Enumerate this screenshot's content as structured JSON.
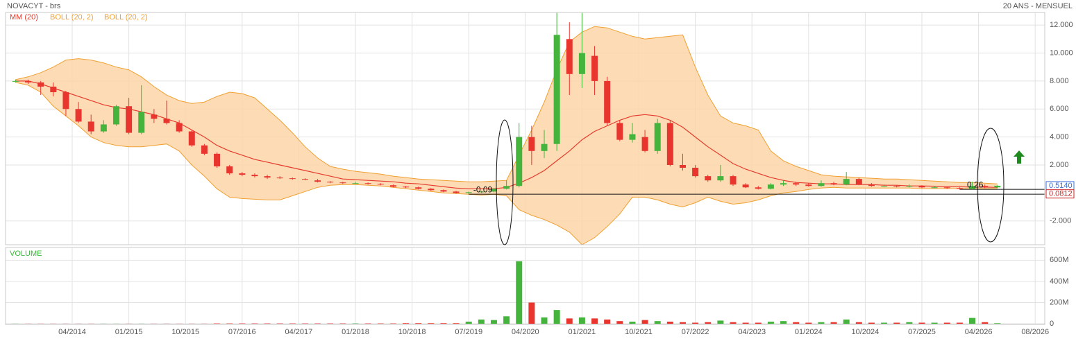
{
  "chart_data": {
    "type": "candlestick",
    "title": "NOVACYT - brs",
    "subtitle": "20 ANS - MENSUEL",
    "x": [
      "07/2013",
      "09/2013",
      "11/2013",
      "01/2014",
      "03/2014",
      "05/2014",
      "07/2014",
      "09/2014",
      "11/2014",
      "01/2015",
      "03/2015",
      "05/2015",
      "07/2015",
      "09/2015",
      "11/2015",
      "01/2016",
      "03/2016",
      "05/2016",
      "07/2016",
      "09/2016",
      "11/2016",
      "01/2017",
      "03/2017",
      "05/2017",
      "07/2017",
      "09/2017",
      "11/2017",
      "01/2018",
      "03/2018",
      "05/2018",
      "07/2018",
      "09/2018",
      "11/2018",
      "01/2019",
      "03/2019",
      "05/2019",
      "07/2019",
      "09/2019",
      "11/2019",
      "01/2020",
      "03/2020",
      "05/2020",
      "07/2020",
      "09/2020",
      "11/2020",
      "01/2021",
      "03/2021",
      "05/2021",
      "07/2021",
      "09/2021",
      "11/2021",
      "01/2022",
      "03/2022",
      "05/2022",
      "07/2022",
      "09/2022",
      "11/2022",
      "01/2023",
      "03/2023",
      "05/2023",
      "07/2023",
      "09/2023",
      "11/2023",
      "01/2024",
      "03/2024",
      "05/2024",
      "07/2024",
      "09/2024",
      "11/2024",
      "01/2025",
      "03/2025",
      "05/2025",
      "07/2025",
      "09/2025",
      "11/2025",
      "01/2026",
      "03/2026",
      "05/2026",
      "07/2026"
    ],
    "open": [
      8.0,
      8.0,
      7.9,
      7.6,
      7.2,
      6.0,
      5.1,
      4.4,
      4.9,
      6.2,
      4.3,
      5.6,
      5.3,
      5.0,
      4.4,
      3.4,
      2.8,
      1.9,
      1.4,
      1.3,
      1.2,
      1.1,
      1.05,
      1.0,
      0.9,
      0.8,
      0.75,
      0.7,
      0.7,
      0.65,
      0.55,
      0.45,
      0.4,
      0.3,
      0.2,
      0.1,
      0.0,
      0.05,
      0.1,
      0.3,
      0.5,
      4.0,
      3.0,
      3.5,
      11.0,
      8.5,
      9.8,
      8.0,
      5.0,
      3.8,
      4.0,
      3.0,
      5.0,
      2.0,
      1.8,
      1.2,
      0.9,
      1.2,
      0.6,
      0.4,
      0.3,
      0.6,
      0.7,
      0.6,
      0.5,
      0.7,
      0.6,
      1.0,
      0.6,
      0.5,
      0.5,
      0.45,
      0.5,
      0.4,
      0.4,
      0.35,
      0.3,
      0.5,
      0.4
    ],
    "high": [
      8.1,
      8.1,
      8.0,
      7.9,
      7.3,
      6.5,
      5.6,
      5.2,
      6.3,
      6.8,
      7.7,
      6.0,
      6.6,
      5.2,
      4.5,
      3.5,
      2.9,
      2.0,
      1.5,
      1.4,
      1.3,
      1.2,
      1.1,
      1.05,
      1.0,
      0.85,
      0.8,
      0.8,
      0.75,
      0.7,
      0.6,
      0.5,
      0.45,
      0.35,
      0.25,
      0.15,
      0.1,
      0.15,
      0.35,
      0.9,
      5.0,
      4.8,
      4.5,
      12.9,
      12.2,
      12.9,
      10.5,
      8.3,
      5.2,
      5.0,
      4.5,
      5.3,
      5.2,
      2.8,
      2.0,
      1.3,
      2.0,
      1.3,
      0.7,
      0.5,
      0.7,
      0.9,
      0.8,
      0.7,
      0.9,
      0.8,
      1.5,
      1.1,
      0.7,
      0.6,
      0.55,
      0.6,
      0.55,
      0.5,
      0.45,
      0.4,
      0.8,
      0.6,
      0.55
    ],
    "low": [
      7.9,
      7.8,
      7.0,
      6.9,
      5.5,
      5.0,
      4.2,
      4.3,
      4.8,
      4.2,
      4.2,
      5.0,
      4.9,
      4.3,
      3.3,
      2.7,
      1.8,
      1.3,
      1.2,
      1.1,
      1.0,
      1.0,
      0.95,
      0.9,
      0.75,
      0.7,
      0.65,
      0.65,
      0.6,
      0.55,
      0.4,
      0.35,
      0.25,
      0.15,
      0.05,
      -0.05,
      -0.09,
      0.0,
      0.05,
      0.25,
      0.4,
      2.0,
      2.5,
      3.0,
      7.0,
      7.5,
      7.0,
      4.8,
      3.7,
      3.6,
      2.9,
      2.8,
      1.9,
      1.6,
      1.1,
      0.8,
      0.8,
      0.5,
      0.35,
      0.25,
      0.25,
      0.5,
      0.5,
      0.45,
      0.45,
      0.55,
      0.55,
      0.55,
      0.45,
      0.45,
      0.4,
      0.4,
      0.35,
      0.35,
      0.3,
      0.25,
      0.26,
      0.35,
      0.35
    ],
    "close": [
      8.0,
      7.9,
      7.6,
      7.2,
      6.0,
      5.1,
      4.4,
      4.9,
      6.2,
      4.3,
      5.8,
      5.3,
      5.0,
      4.4,
      3.4,
      2.8,
      1.9,
      1.4,
      1.3,
      1.2,
      1.1,
      1.05,
      1.0,
      0.95,
      0.8,
      0.75,
      0.7,
      0.7,
      0.65,
      0.6,
      0.45,
      0.4,
      0.3,
      0.2,
      0.1,
      0.0,
      0.05,
      0.1,
      0.3,
      0.5,
      4.0,
      3.0,
      3.5,
      11.3,
      8.5,
      10.0,
      8.0,
      5.0,
      3.8,
      4.2,
      3.0,
      5.0,
      2.0,
      1.8,
      1.2,
      0.9,
      1.2,
      0.6,
      0.4,
      0.3,
      0.6,
      0.7,
      0.6,
      0.5,
      0.7,
      0.6,
      1.0,
      0.6,
      0.5,
      0.5,
      0.45,
      0.5,
      0.4,
      0.4,
      0.35,
      0.3,
      0.5,
      0.4,
      0.514
    ],
    "up_color": "#44b43c",
    "down_color": "#e8362f",
    "series": [
      {
        "name": "MM (20)",
        "color": "#e53b2c",
        "values": [
          8.0,
          8.0,
          7.8,
          7.5,
          7.2,
          6.9,
          6.6,
          6.3,
          6.1,
          6.0,
          5.8,
          5.6,
          5.3,
          5.0,
          4.5,
          4.0,
          3.4,
          3.0,
          2.7,
          2.4,
          2.2,
          2.0,
          1.8,
          1.6,
          1.4,
          1.2,
          1.0,
          0.95,
          0.9,
          0.85,
          0.8,
          0.7,
          0.65,
          0.55,
          0.45,
          0.35,
          0.3,
          0.3,
          0.3,
          0.4,
          0.7,
          1.1,
          1.6,
          2.3,
          3.0,
          3.8,
          4.4,
          4.8,
          5.2,
          5.5,
          5.6,
          5.5,
          5.2,
          4.7,
          4.0,
          3.3,
          2.7,
          2.1,
          1.7,
          1.4,
          1.1,
          0.9,
          0.75,
          0.7,
          0.65,
          0.65,
          0.6,
          0.6,
          0.6,
          0.55,
          0.55,
          0.5,
          0.5,
          0.48,
          0.45,
          0.45,
          0.42,
          0.42,
          0.4
        ]
      },
      {
        "name": "BOLL (20, 2)",
        "color": "#f0a030",
        "values": [
          8.1,
          8.3,
          8.6,
          9.0,
          9.5,
          9.6,
          9.5,
          9.3,
          9.0,
          8.8,
          8.3,
          7.6,
          7.0,
          6.6,
          6.4,
          6.5,
          6.9,
          7.2,
          7.1,
          6.8,
          6.0,
          5.2,
          4.3,
          3.3,
          2.5,
          1.9,
          1.7,
          1.55,
          1.45,
          1.35,
          1.2,
          1.1,
          1.0,
          0.95,
          0.9,
          0.85,
          0.8,
          0.8,
          0.85,
          0.9,
          2.7,
          4.5,
          6.5,
          8.8,
          10.8,
          11.5,
          11.9,
          11.8,
          11.5,
          11.2,
          11.0,
          11.1,
          11.2,
          11.3,
          9.0,
          7.0,
          5.5,
          5.0,
          4.8,
          4.5,
          3.0,
          2.3,
          1.9,
          1.6,
          1.3,
          1.2,
          1.15,
          1.1,
          1.05,
          1.0,
          1.0,
          0.95,
          0.9,
          0.85,
          0.8,
          0.75,
          0.75,
          0.7,
          0.65
        ]
      },
      {
        "name": "BOLL (20, 2)",
        "color": "#f0a030",
        "values": [
          7.9,
          7.7,
          7.2,
          6.2,
          5.5,
          4.8,
          4.0,
          3.6,
          3.4,
          3.3,
          3.3,
          3.4,
          3.5,
          3.0,
          2.0,
          1.2,
          0.3,
          -0.3,
          -0.4,
          -0.45,
          -0.5,
          -0.5,
          -0.2,
          0.1,
          0.4,
          0.55,
          0.6,
          0.6,
          0.55,
          0.5,
          0.4,
          0.3,
          0.2,
          0.1,
          0.0,
          -0.05,
          -0.1,
          -0.15,
          -0.1,
          -0.2,
          -1.2,
          -1.6,
          -1.9,
          -2.3,
          -2.8,
          -3.7,
          -3.2,
          -2.4,
          -1.5,
          -0.3,
          -0.3,
          -0.5,
          -0.8,
          -1.0,
          -0.7,
          -0.3,
          -0.6,
          -0.8,
          -0.7,
          -0.5,
          -0.2,
          0.0,
          0.1,
          0.25,
          0.35,
          0.4,
          0.35,
          0.35,
          0.35,
          0.35,
          0.35,
          0.35,
          0.3,
          0.3,
          0.3,
          0.3,
          0.3,
          0.3,
          0.3
        ]
      }
    ],
    "band_fill": "#fbd5a8",
    "ylim": [
      -3.7,
      12.9
    ],
    "yticks": [
      {
        "value": 12,
        "label": "12.000"
      },
      {
        "value": 10,
        "label": "10.000"
      },
      {
        "value": 8,
        "label": "8.000"
      },
      {
        "value": 6,
        "label": "6.000"
      },
      {
        "value": 4,
        "label": "4.000"
      },
      {
        "value": 2,
        "label": "2.000"
      },
      {
        "value": -2,
        "label": "-2.000"
      }
    ],
    "xticks": [
      "04/2014",
      "01/2015",
      "10/2015",
      "07/2016",
      "04/2017",
      "01/2018",
      "10/2018",
      "07/2019",
      "04/2020",
      "01/2021",
      "10/2021",
      "07/2022",
      "04/2023",
      "01/2024",
      "10/2024",
      "07/2025",
      "04/2026",
      "08/2026"
    ],
    "grid": true,
    "annotations": [
      {
        "label": "-0.09",
        "value": -0.09,
        "x": "07/2019"
      },
      {
        "label": "0.26",
        "value": 0.26,
        "x": "01/2026"
      }
    ],
    "price_tags": [
      {
        "label": "0.5140",
        "value": 0.514,
        "color": "#3a6fd8"
      },
      {
        "label": "0.0812",
        "value": 0.0812,
        "color": "#cc2222"
      }
    ],
    "volume": {
      "title": "VOLUME",
      "values": [
        1000000,
        1000000,
        1000000,
        1000000,
        1000000,
        1000000,
        1000000,
        1000000,
        1000000,
        1000000,
        1000000,
        1000000,
        1000000,
        1000000,
        1000000,
        1000000,
        3000000,
        3000000,
        3000000,
        3000000,
        3000000,
        3000000,
        3000000,
        3000000,
        3000000,
        3000000,
        3000000,
        3000000,
        3000000,
        3000000,
        3000000,
        5000000,
        5000000,
        5000000,
        5000000,
        5000000,
        20000000,
        40000000,
        35000000,
        70000000,
        590000000,
        200000000,
        60000000,
        130000000,
        50000000,
        60000000,
        50000000,
        40000000,
        25000000,
        20000000,
        35000000,
        25000000,
        20000000,
        15000000,
        10000000,
        15000000,
        30000000,
        15000000,
        10000000,
        10000000,
        20000000,
        25000000,
        15000000,
        10000000,
        15000000,
        15000000,
        40000000,
        15000000,
        10000000,
        10000000,
        10000000,
        15000000,
        10000000,
        10000000,
        10000000,
        10000000,
        55000000,
        15000000,
        5000000
      ],
      "ylim": [
        0,
        720000000
      ],
      "yticks": [
        {
          "value": 600000000,
          "label": "600M"
        },
        {
          "value": 400000000,
          "label": "400M"
        },
        {
          "value": 200000000,
          "label": "200M"
        },
        0
      ],
      "title_color": "#3cb83c"
    }
  }
}
